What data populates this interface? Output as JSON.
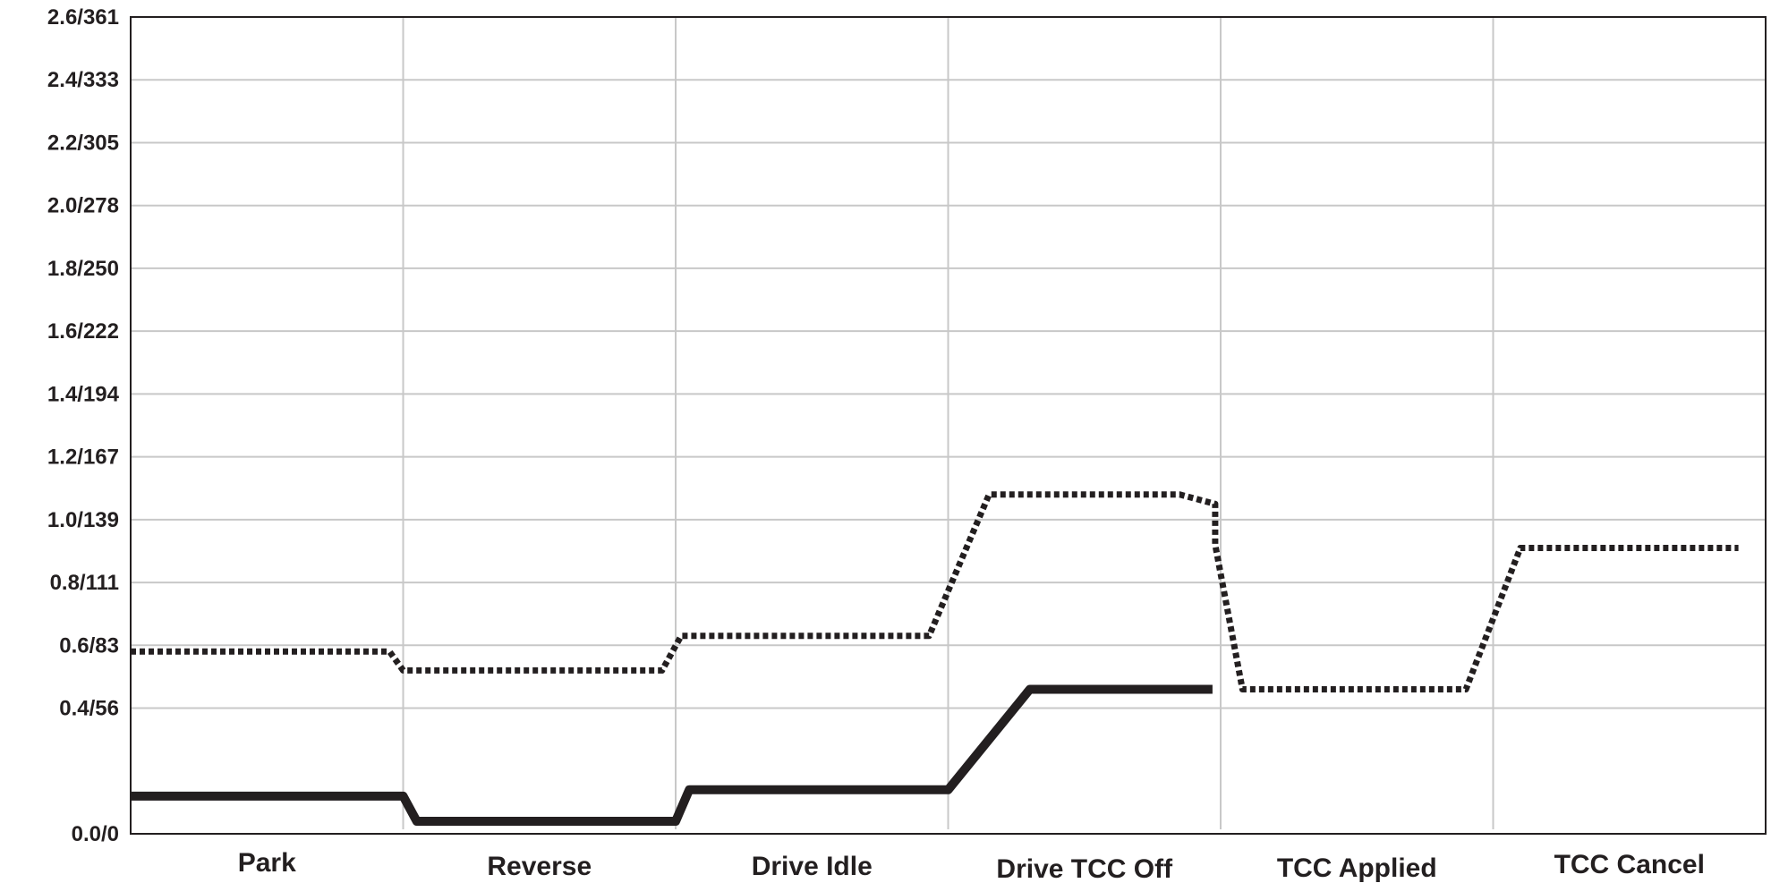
{
  "chart_data": {
    "type": "line",
    "title": "",
    "xlabel": "",
    "ylabel": "",
    "categories": [
      "Park",
      "Reverse",
      "Drive Idle",
      "Drive TCC Off",
      "TCC Applied",
      "TCC Cancel"
    ],
    "y_ticks": [
      "0.0/0",
      "0.4/56",
      "0.6/83",
      "0.8/111",
      "1.0/139",
      "1.2/167",
      "1.4/194",
      "1.6/222",
      "1.8/250",
      "2.0/278",
      "2.2/305",
      "2.4/333",
      "2.6/361"
    ],
    "ylim": [
      0.0,
      2.6
    ],
    "grid": true,
    "legend": "none",
    "colors": {
      "line": "#231f20",
      "grid": "#c8c8c8",
      "axis": "#231f20"
    },
    "series": [
      {
        "style": "dotted",
        "points": [
          [
            0.0,
            0.58
          ],
          [
            0.95,
            0.58
          ],
          [
            1.0,
            0.52
          ],
          [
            1.95,
            0.52
          ],
          [
            2.02,
            0.63
          ],
          [
            2.93,
            0.63
          ],
          [
            3.15,
            1.08
          ],
          [
            3.85,
            1.08
          ],
          [
            3.98,
            1.05
          ],
          [
            3.98,
            0.92
          ],
          [
            4.08,
            0.46
          ],
          [
            4.9,
            0.46
          ],
          [
            5.1,
            0.91
          ],
          [
            5.9,
            0.91
          ]
        ]
      },
      {
        "style": "solid",
        "points": [
          [
            0.0,
            0.12
          ],
          [
            1.0,
            0.12
          ],
          [
            1.05,
            0.04
          ],
          [
            2.0,
            0.04
          ],
          [
            2.05,
            0.14
          ],
          [
            3.0,
            0.14
          ],
          [
            3.3,
            0.46
          ],
          [
            3.97,
            0.46
          ]
        ]
      }
    ]
  }
}
